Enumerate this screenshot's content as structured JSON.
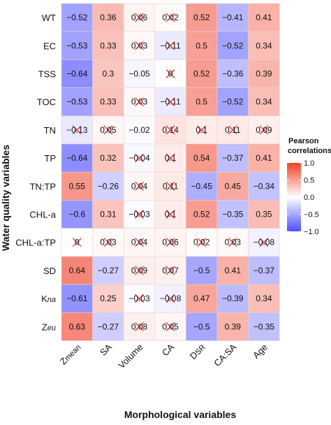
{
  "chart_data": {
    "type": "heatmap",
    "title": "",
    "xlabel": "Morphological variables",
    "ylabel": "Water quality variables",
    "x_categories": [
      "Zmean",
      "SA",
      "Volume",
      "CA",
      "DSR",
      "CA:SA",
      "Age"
    ],
    "x_tick_labels": [
      {
        "main": "Z",
        "sub": "mean"
      },
      {
        "main": "SA",
        "sub": ""
      },
      {
        "main": "Volume",
        "sub": ""
      },
      {
        "main": "CA",
        "sub": ""
      },
      {
        "main": "D",
        "sub": "SR"
      },
      {
        "main": "CA:SA",
        "sub": ""
      },
      {
        "main": "Age",
        "sub": ""
      }
    ],
    "y_categories": [
      "WT",
      "EC",
      "TSS",
      "TOC",
      "TN",
      "TP",
      "TN:TP",
      "CHL-a",
      "CHL-a:TP",
      "SD",
      "Kna",
      "Zeu"
    ],
    "y_tick_labels": [
      {
        "main": "WT",
        "sub": ""
      },
      {
        "main": "EC",
        "sub": ""
      },
      {
        "main": "TSS",
        "sub": ""
      },
      {
        "main": "TOC",
        "sub": ""
      },
      {
        "main": "TN",
        "sub": ""
      },
      {
        "main": "TP",
        "sub": ""
      },
      {
        "main": "TN:TP",
        "sub": ""
      },
      {
        "main": "CHL-a",
        "sub": ""
      },
      {
        "main": "CHL-a:TP",
        "sub": ""
      },
      {
        "main": "SD",
        "sub": ""
      },
      {
        "main": "K",
        "sub": "na"
      },
      {
        "main": "Z",
        "sub": "eu"
      }
    ],
    "values": [
      [
        -0.52,
        0.36,
        0.06,
        0.02,
        0.52,
        -0.41,
        0.41
      ],
      [
        -0.53,
        0.33,
        0.03,
        -0.11,
        0.5,
        -0.52,
        0.34
      ],
      [
        -0.64,
        0.3,
        -0.05,
        0,
        0.52,
        -0.36,
        0.39
      ],
      [
        -0.53,
        0.33,
        0.03,
        -0.11,
        0.5,
        -0.52,
        0.34
      ],
      [
        -0.13,
        0.05,
        -0.02,
        0.14,
        0.1,
        0.11,
        0.09
      ],
      [
        -0.64,
        0.32,
        -0.04,
        0.1,
        0.54,
        -0.37,
        0.41
      ],
      [
        0.55,
        -0.26,
        0.04,
        0.11,
        -0.45,
        0.45,
        -0.34
      ],
      [
        -0.6,
        0.31,
        -0.03,
        0.1,
        0.52,
        -0.35,
        0.35
      ],
      [
        0,
        0.03,
        0.04,
        0.06,
        0.02,
        0.03,
        -0.08
      ],
      [
        0.64,
        -0.27,
        0.09,
        0.07,
        -0.5,
        0.41,
        -0.37
      ],
      [
        -0.61,
        0.25,
        -0.03,
        -0.08,
        0.47,
        -0.39,
        0.34
      ],
      [
        0.63,
        -0.27,
        0.08,
        0.05,
        -0.5,
        0.39,
        -0.35
      ]
    ],
    "value_labels": [
      [
        "−0.52",
        "0.36",
        "0.06",
        "0.02",
        "0.52",
        "−0.41",
        "0.41"
      ],
      [
        "−0.53",
        "0.33",
        "0.03",
        "−0.11",
        "0.5",
        "−0.52",
        "0.34"
      ],
      [
        "−0.64",
        "0.3",
        "−0.05",
        "0",
        "0.52",
        "−0.36",
        "0.39"
      ],
      [
        "−0.53",
        "0.33",
        "0.03",
        "−0.11",
        "0.5",
        "−0.52",
        "0.34"
      ],
      [
        "−0.13",
        "0.05",
        "−0.02",
        "0.14",
        "0.1",
        "0.11",
        "0.09"
      ],
      [
        "−0.64",
        "0.32",
        "−0.04",
        "0.1",
        "0.54",
        "−0.37",
        "0.41"
      ],
      [
        "0.55",
        "−0.26",
        "0.04",
        "0.11",
        "−0.45",
        "0.45",
        "−0.34"
      ],
      [
        "−0.6",
        "0.31",
        "−0.03",
        "0.1",
        "0.52",
        "−0.35",
        "0.35"
      ],
      [
        "0",
        "0.03",
        "0.04",
        "0.06",
        "0.02",
        "0.03",
        "−0.08"
      ],
      [
        "0.64",
        "−0.27",
        "0.09",
        "0.07",
        "−0.5",
        "0.41",
        "−0.37"
      ],
      [
        "−0.61",
        "0.25",
        "−0.03",
        "−0.08",
        "0.47",
        "−0.39",
        "0.34"
      ],
      [
        "0.63",
        "−0.27",
        "0.08",
        "0.05",
        "−0.5",
        "0.39",
        "−0.35"
      ]
    ],
    "not_significant": [
      [
        false,
        false,
        true,
        true,
        false,
        false,
        false
      ],
      [
        false,
        false,
        true,
        true,
        false,
        false,
        false
      ],
      [
        false,
        false,
        false,
        true,
        false,
        false,
        false
      ],
      [
        false,
        false,
        true,
        true,
        false,
        false,
        false
      ],
      [
        true,
        true,
        false,
        true,
        true,
        true,
        true
      ],
      [
        false,
        false,
        true,
        true,
        false,
        false,
        false
      ],
      [
        false,
        false,
        true,
        true,
        false,
        false,
        false
      ],
      [
        false,
        false,
        true,
        true,
        false,
        false,
        false
      ],
      [
        true,
        true,
        true,
        true,
        true,
        true,
        true
      ],
      [
        false,
        false,
        true,
        true,
        false,
        false,
        false
      ],
      [
        false,
        false,
        true,
        true,
        false,
        false,
        false
      ],
      [
        false,
        false,
        true,
        true,
        false,
        false,
        false
      ]
    ],
    "legend": {
      "title_lines": [
        "Pearson",
        "correlations"
      ],
      "ticks": [
        1.0,
        0.5,
        0.0,
        -0.5,
        -1.0
      ],
      "tick_labels": [
        "1.0",
        "0.5",
        "0.0",
        "−0.5",
        "−1.0"
      ],
      "range": [
        -1,
        1
      ],
      "placement": "right"
    },
    "colors": {
      "negative": "#4d4dff",
      "zero": "#ffffff",
      "positive": "#f0402a",
      "cross": "#d43a3a",
      "cell_border": "#e8d4d0"
    },
    "value_range": [
      -1,
      1
    ]
  }
}
